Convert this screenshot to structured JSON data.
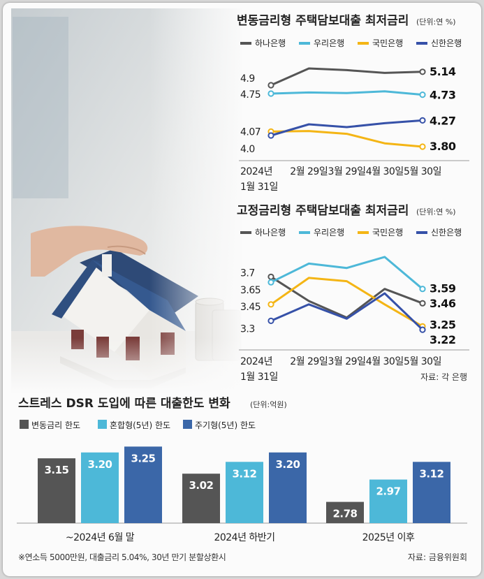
{
  "colors": {
    "hana": "#555555",
    "woori": "#4db8d8",
    "kb": "#f4b515",
    "shinhan": "#3651a8",
    "bar_variable": "#555555",
    "bar_mixed": "#4db8d8",
    "bar_periodic": "#3b67a8"
  },
  "chart_data": [
    {
      "type": "line",
      "title": "변동금리형 주택담보대출 최저금리",
      "unit": "(단위:연 %)",
      "categories": [
        "2024년 1월 31일",
        "2월 29일",
        "3월 29일",
        "4월 30일",
        "5월 30일"
      ],
      "x_tick_labels": [
        "2024년",
        "2월 29일",
        "3월 29일",
        "4월 30일",
        "5월 30일"
      ],
      "x_first_second_line": "1월 31일",
      "series": [
        {
          "name": "하나은행",
          "values": [
            4.9,
            5.2,
            5.17,
            5.12,
            5.14
          ],
          "start_label": "4.9",
          "end_label": "5.14"
        },
        {
          "name": "우리은행",
          "values": [
            4.75,
            4.77,
            4.76,
            4.79,
            4.73
          ],
          "start_label": "4.75",
          "end_label": "4.73"
        },
        {
          "name": "국민은행",
          "values": [
            4.07,
            4.08,
            4.03,
            3.86,
            3.8
          ],
          "start_label": "4.07",
          "end_label": "3.80"
        },
        {
          "name": "신한은행",
          "values": [
            4.0,
            4.2,
            4.15,
            4.22,
            4.27
          ],
          "start_label": "4.0",
          "end_label": "4.27"
        }
      ],
      "ylim": [
        3.6,
        5.4
      ]
    },
    {
      "type": "line",
      "title": "고정금리형 주택담보대출 최저금리",
      "unit": "(단위:연 %)",
      "categories": [
        "2024년 1월 31일",
        "2월 29일",
        "3월 29일",
        "4월 30일",
        "5월 30일"
      ],
      "x_tick_labels": [
        "2024년",
        "2월 29일",
        "3월 29일",
        "4월 30일",
        "5월 30일"
      ],
      "x_first_second_line": "1월 31일",
      "source": "자료: 각 은행",
      "series": [
        {
          "name": "하나은행",
          "values": [
            3.7,
            3.48,
            3.33,
            3.59,
            3.46
          ],
          "start_label": "3.7",
          "end_label": "3.46"
        },
        {
          "name": "우리은행",
          "values": [
            3.65,
            3.82,
            3.78,
            3.88,
            3.59
          ],
          "start_label": "3.65",
          "end_label": "3.59"
        },
        {
          "name": "국민은행",
          "values": [
            3.45,
            3.69,
            3.66,
            3.45,
            3.25
          ],
          "start_label": "3.45",
          "end_label": "3.25"
        },
        {
          "name": "신한은행",
          "values": [
            3.3,
            3.45,
            3.32,
            3.55,
            3.22
          ],
          "start_label": "3.3",
          "end_label": "3.22"
        }
      ],
      "ylim": [
        3.1,
        4.0
      ]
    },
    {
      "type": "bar",
      "title": "스트레스 DSR 도입에 따른 대출한도 변화",
      "unit": "(단위:억원)",
      "categories": [
        "~2024년 6월 말",
        "2024년 하반기",
        "2025년 이후"
      ],
      "series": [
        {
          "name": "변동금리 한도",
          "values": [
            3.15,
            3.02,
            2.78
          ],
          "labels": [
            "3.15",
            "3.02",
            "2.78"
          ]
        },
        {
          "name": "혼합형(5년) 한도",
          "values": [
            3.2,
            3.12,
            2.97
          ],
          "labels": [
            "3.20",
            "3.12",
            "2.97"
          ]
        },
        {
          "name": "주기형(5년) 한도",
          "values": [
            3.25,
            3.2,
            3.12
          ],
          "labels": [
            "3.25",
            "3.20",
            "3.12"
          ]
        }
      ],
      "ylim": [
        2.6,
        3.27
      ],
      "footnote": "※연소득 5000만원, 대출금리 5.04%, 30년 만기 분할상환시",
      "source": "자료: 금융위원회"
    }
  ]
}
